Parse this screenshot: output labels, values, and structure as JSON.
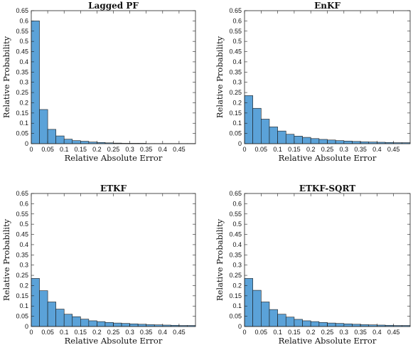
{
  "chart_data": [
    {
      "type": "bar",
      "title": "Lagged PF",
      "xlabel": "Relative Absolute Error",
      "ylabel": "Relative Probability",
      "bin_width": 0.025,
      "bin_start": 0,
      "values": [
        0.6,
        0.167,
        0.07,
        0.038,
        0.022,
        0.015,
        0.012,
        0.008,
        0.006,
        0.004,
        0.003,
        0.002,
        0.002,
        0.002,
        0.001,
        0.001,
        0.001,
        0.001,
        0.001,
        0.001
      ],
      "xlim": [
        0,
        0.5
      ],
      "ylim": [
        0,
        0.65
      ],
      "xticks": [
        "0",
        "0.05",
        "0.1",
        "0.15",
        "0.2",
        "0.25",
        "0.3",
        "0.35",
        "0.4",
        "0.45"
      ],
      "yticks": [
        "0",
        "0.05",
        "0.1",
        "0.15",
        "0.2",
        "0.25",
        "0.3",
        "0.35",
        "0.4",
        "0.45",
        "0.5",
        "0.55",
        "0.6",
        "0.65"
      ]
    },
    {
      "type": "bar",
      "title": "EnKF",
      "xlabel": "Relative Absolute Error",
      "ylabel": "Relative Probability",
      "bin_width": 0.025,
      "bin_start": 0,
      "values": [
        0.235,
        0.173,
        0.12,
        0.082,
        0.062,
        0.046,
        0.037,
        0.031,
        0.025,
        0.021,
        0.018,
        0.015,
        0.013,
        0.011,
        0.009,
        0.008,
        0.007,
        0.006,
        0.005,
        0.005
      ],
      "xlim": [
        0,
        0.5
      ],
      "ylim": [
        0,
        0.65
      ],
      "xticks": [
        "0",
        "0.05",
        "0.1",
        "0.15",
        "0.2",
        "0.25",
        "0.3",
        "0.35",
        "0.4",
        "0.45"
      ],
      "yticks": [
        "0",
        "0.05",
        "0.1",
        "0.15",
        "0.2",
        "0.25",
        "0.3",
        "0.35",
        "0.4",
        "0.45",
        "0.5",
        "0.55",
        "0.6",
        "0.65"
      ]
    },
    {
      "type": "bar",
      "title": "ETKF",
      "xlabel": "Relative Absolute Error",
      "ylabel": "Relative Probability",
      "bin_width": 0.025,
      "bin_start": 0,
      "values": [
        0.235,
        0.175,
        0.12,
        0.085,
        0.06,
        0.048,
        0.036,
        0.028,
        0.024,
        0.02,
        0.017,
        0.015,
        0.013,
        0.011,
        0.009,
        0.008,
        0.007,
        0.006,
        0.005,
        0.005
      ],
      "xlim": [
        0,
        0.5
      ],
      "ylim": [
        0,
        0.65
      ],
      "xticks": [
        "0",
        "0.05",
        "0.1",
        "0.15",
        "0.2",
        "0.25",
        "0.3",
        "0.35",
        "0.4",
        "0.45"
      ],
      "yticks": [
        "0",
        "0.05",
        "0.1",
        "0.15",
        "0.2",
        "0.25",
        "0.3",
        "0.35",
        "0.4",
        "0.45",
        "0.5",
        "0.55",
        "0.6",
        "0.65"
      ]
    },
    {
      "type": "bar",
      "title": "ETKF-SQRT",
      "xlabel": "Relative Absolute Error",
      "ylabel": "Relative Probability",
      "bin_width": 0.025,
      "bin_start": 0,
      "values": [
        0.235,
        0.177,
        0.12,
        0.083,
        0.06,
        0.046,
        0.035,
        0.028,
        0.024,
        0.02,
        0.017,
        0.015,
        0.013,
        0.011,
        0.009,
        0.008,
        0.007,
        0.006,
        0.005,
        0.005
      ],
      "xlim": [
        0,
        0.5
      ],
      "ylim": [
        0,
        0.65
      ],
      "xticks": [
        "0",
        "0.05",
        "0.1",
        "0.15",
        "0.2",
        "0.25",
        "0.3",
        "0.35",
        "0.4",
        "0.45"
      ],
      "yticks": [
        "0",
        "0.05",
        "0.1",
        "0.15",
        "0.2",
        "0.25",
        "0.3",
        "0.35",
        "0.4",
        "0.45",
        "0.5",
        "0.55",
        "0.6",
        "0.65"
      ]
    }
  ],
  "colors": {
    "bar_fill": "#5ba2d8",
    "bar_edge": "#1a1a1a"
  }
}
